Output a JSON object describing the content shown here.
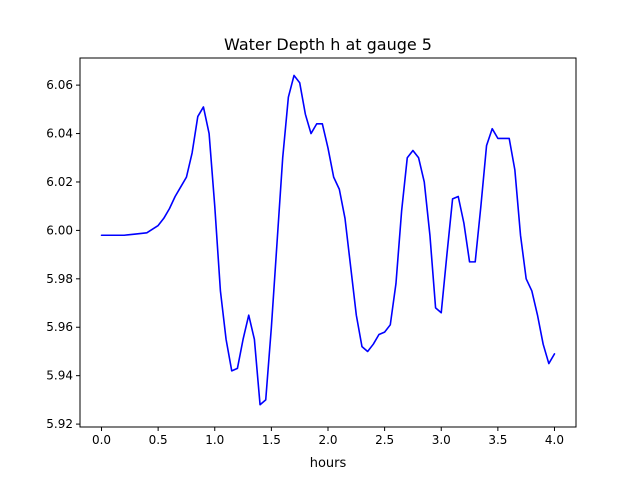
{
  "chart_data": {
    "type": "line",
    "title": "Water Depth h at gauge 5",
    "xlabel": "hours",
    "ylabel": "",
    "xlim": [
      -0.19,
      4.19
    ],
    "ylim": [
      5.9188,
      6.0712
    ],
    "xticks": [
      0.0,
      0.5,
      1.0,
      1.5,
      2.0,
      2.5,
      3.0,
      3.5,
      4.0
    ],
    "xtick_labels": [
      "0.0",
      "0.5",
      "1.0",
      "1.5",
      "2.0",
      "2.5",
      "3.0",
      "3.5",
      "4.0"
    ],
    "yticks": [
      5.92,
      5.94,
      5.96,
      5.98,
      6.0,
      6.02,
      6.04,
      6.06
    ],
    "ytick_labels": [
      "5.92",
      "5.94",
      "5.96",
      "5.98",
      "6.00",
      "6.02",
      "6.04",
      "6.06"
    ],
    "grid": false,
    "series": [
      {
        "color": "#0000ff",
        "x": [
          0.0,
          0.1,
          0.2,
          0.3,
          0.4,
          0.5,
          0.55,
          0.6,
          0.65,
          0.7,
          0.75,
          0.8,
          0.85,
          0.9,
          0.95,
          1.0,
          1.05,
          1.1,
          1.15,
          1.2,
          1.25,
          1.3,
          1.35,
          1.4,
          1.45,
          1.5,
          1.55,
          1.6,
          1.65,
          1.7,
          1.75,
          1.8,
          1.85,
          1.9,
          1.95,
          2.0,
          2.05,
          2.1,
          2.15,
          2.2,
          2.25,
          2.3,
          2.35,
          2.4,
          2.45,
          2.5,
          2.55,
          2.6,
          2.65,
          2.7,
          2.75,
          2.8,
          2.85,
          2.9,
          2.95,
          3.0,
          3.05,
          3.1,
          3.15,
          3.2,
          3.25,
          3.3,
          3.35,
          3.4,
          3.45,
          3.5,
          3.55,
          3.6,
          3.65,
          3.7,
          3.75,
          3.8,
          3.85,
          3.9,
          3.95,
          4.0
        ],
        "y": [
          5.998,
          5.998,
          5.998,
          5.9985,
          5.999,
          6.002,
          6.005,
          6.009,
          6.014,
          6.018,
          6.022,
          6.032,
          6.047,
          6.051,
          6.04,
          6.01,
          5.975,
          5.955,
          5.942,
          5.943,
          5.955,
          5.965,
          5.955,
          5.928,
          5.93,
          5.96,
          5.995,
          6.03,
          6.055,
          6.064,
          6.061,
          6.048,
          6.04,
          6.044,
          6.044,
          6.034,
          6.022,
          6.017,
          6.005,
          5.985,
          5.965,
          5.952,
          5.95,
          5.953,
          5.957,
          5.958,
          5.961,
          5.978,
          6.008,
          6.03,
          6.033,
          6.03,
          6.02,
          5.998,
          5.968,
          5.966,
          5.99,
          6.013,
          6.014,
          6.003,
          5.987,
          5.987,
          6.01,
          6.035,
          6.042,
          6.038,
          6.038,
          6.038,
          6.025,
          5.998,
          5.98,
          5.975,
          5.965,
          5.953,
          5.945,
          5.949
        ]
      }
    ]
  }
}
